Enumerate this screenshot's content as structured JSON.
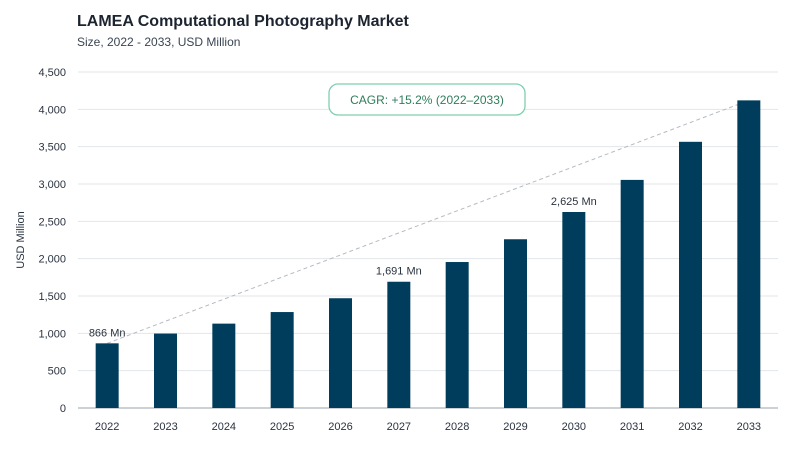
{
  "header": {
    "title": "LAMEA Computational Photography Market",
    "subtitle": "Size, 2022 - 2033, USD Million"
  },
  "chart_data": {
    "type": "bar",
    "categories": [
      "2022",
      "2023",
      "2024",
      "2025",
      "2026",
      "2027",
      "2028",
      "2029",
      "2030",
      "2031",
      "2032",
      "2033"
    ],
    "values": [
      866,
      997,
      1130,
      1285,
      1470,
      1691,
      1955,
      2260,
      2625,
      3055,
      3565,
      4120
    ],
    "ylabel": "USD Million",
    "ylim": [
      0,
      4500
    ],
    "yticks": [
      0,
      500,
      1000,
      1500,
      2000,
      2500,
      3000,
      3500,
      4000,
      4500
    ],
    "ytick_labels": [
      "0",
      "500",
      "1,000",
      "1,500",
      "2,000",
      "2,500",
      "3,000",
      "3,500",
      "4,000",
      "4,500"
    ],
    "grid": true,
    "bar_color": "#003d5c",
    "annotations": [
      {
        "index": 0,
        "text": "866 Mn"
      },
      {
        "index": 5,
        "text": "1,691 Mn"
      },
      {
        "index": 8,
        "text": "2,625 Mn"
      }
    ],
    "trendline": {
      "from_index": 0,
      "to_index": 11,
      "style": "dashed"
    },
    "cagr_label": "CAGR: +15.2% (2022–2033)",
    "cagr_color": "#2f7d5b"
  }
}
